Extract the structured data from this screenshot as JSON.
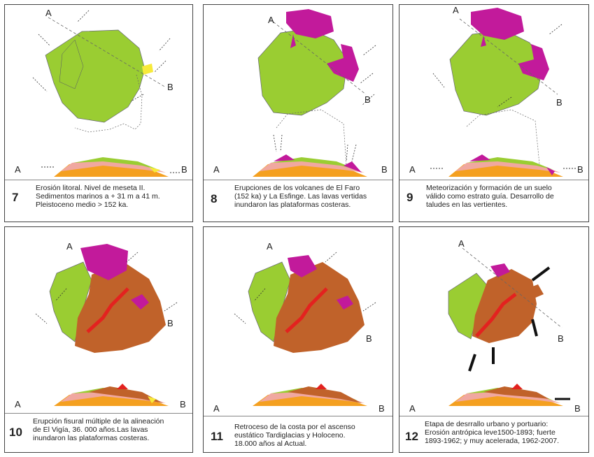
{
  "colors": {
    "green": "#9acd32",
    "magenta": "#c21a9b",
    "brown": "#c0622a",
    "red": "#e3221f",
    "yellow": "#f7ea3a",
    "orange": "#f4a020",
    "pink": "#f0a8a0",
    "lightgreen": "#b9d88a"
  },
  "panels": [
    {
      "number": "7",
      "caption": "Erosión litoral. Nivel de meseta II.\nSedimentos marinos a + 31 m a 41 m.\nPleistoceno medio > 152 ka.",
      "label_a": "A",
      "label_b": "B",
      "section_a": "A",
      "section_b": "B"
    },
    {
      "number": "8",
      "caption": "Erupciones de los volcanes de El Faro\n(152 ka) y La Esfinge. Las lavas vertidas\ninundaron las plataformas costeras.",
      "label_a": "A",
      "label_b": "B",
      "section_a": "A",
      "section_b": "B"
    },
    {
      "number": "9",
      "caption": "Meteorización y formación de un suelo\nválido como estrato guía. Desarrollo de\ntaludes en las vertientes.",
      "label_a": "A",
      "label_b": "B",
      "section_a": "A",
      "section_b": "B"
    },
    {
      "number": "10",
      "caption": "Erupción fisural múltiple de la alineación\nde El Vigía, 36. 000 años.Las lavas\ninundaron las plataformas costeras.",
      "label_a": "A",
      "label_b": "B",
      "section_a": "A",
      "section_b": "B"
    },
    {
      "number": "11",
      "caption": "Retroceso de la costa  por el ascenso\neustático Tardiglacias y Holoceno.\n18.000 años al Actual.",
      "label_a": "A",
      "label_b": "B",
      "section_a": "A",
      "section_b": "B"
    },
    {
      "number": "12",
      "caption": "Etapa de desrrallo urbano y portuario:\nErosión antrópica leve1500-1893; fuerte\n1893-1962; y muy acelerada, 1962-2007.",
      "label_a": "A",
      "label_b": "B",
      "section_a": "A",
      "section_b": "B"
    }
  ]
}
